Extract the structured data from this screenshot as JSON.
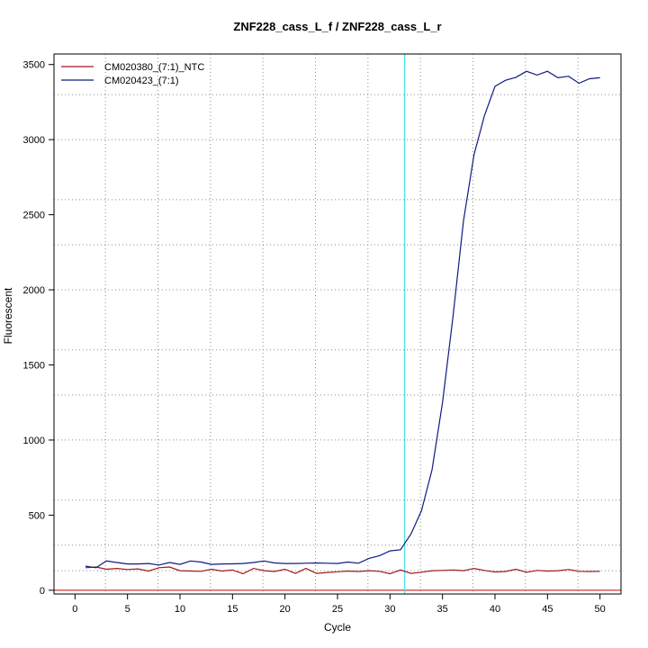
{
  "chart_data": {
    "type": "line",
    "title": "ZNF228_cass_L_f / ZNF228_cass_L_r",
    "xlabel": "Cycle",
    "ylabel": "Fluorescent",
    "xlim": [
      -2,
      52
    ],
    "ylim": [
      -25,
      3570
    ],
    "x_ticks": [
      0,
      5,
      10,
      15,
      20,
      25,
      30,
      35,
      40,
      45,
      50
    ],
    "y_ticks": [
      0,
      500,
      1000,
      1500,
      2000,
      2500,
      3000,
      3500
    ],
    "x_grid": [
      2.9,
      7.9,
      12.9,
      17.9,
      22.9,
      27.9,
      32.9,
      37.9,
      42.9,
      47.9
    ],
    "y_grid": [
      130,
      300,
      600,
      1000,
      1300,
      1600,
      2000,
      2300,
      2600,
      3000,
      3300
    ],
    "grid": true,
    "threshold": {
      "cycle": 31.4,
      "color": "#40e0e8"
    },
    "baseline": {
      "value": 0,
      "color": "#cc2222"
    },
    "legend_position": "top-left",
    "x": [
      1,
      2,
      3,
      4,
      5,
      6,
      7,
      8,
      9,
      10,
      11,
      12,
      13,
      14,
      15,
      16,
      17,
      18,
      19,
      20,
      21,
      22,
      23,
      24,
      25,
      26,
      27,
      28,
      29,
      30,
      31,
      32,
      33,
      34,
      35,
      36,
      37,
      38,
      39,
      40,
      41,
      42,
      43,
      44,
      45,
      46,
      47,
      48,
      49,
      50
    ],
    "series": [
      {
        "name": "CM020380_(7:1)_NTC",
        "color": "#a0181c",
        "values": [
          150,
          155,
          140,
          145,
          138,
          142,
          128,
          150,
          155,
          130,
          128,
          126,
          140,
          128,
          135,
          110,
          145,
          130,
          125,
          140,
          112,
          145,
          112,
          118,
          123,
          128,
          125,
          130,
          126,
          110,
          135,
          112,
          120,
          130,
          132,
          135,
          130,
          145,
          132,
          122,
          125,
          140,
          120,
          132,
          128,
          130,
          138,
          126,
          125,
          126
        ]
      },
      {
        "name": "CM020423_(7:1)",
        "color": "#101a80",
        "values": [
          160,
          150,
          195,
          185,
          175,
          175,
          178,
          168,
          185,
          172,
          195,
          188,
          172,
          175,
          176,
          178,
          185,
          195,
          182,
          178,
          178,
          180,
          182,
          180,
          178,
          188,
          180,
          212,
          230,
          262,
          270,
          375,
          530,
          800,
          1250,
          1820,
          2460,
          2900,
          3160,
          3355,
          3395,
          3415,
          3455,
          3430,
          3455,
          3412,
          3422,
          3375,
          3405,
          3412
        ]
      }
    ]
  }
}
